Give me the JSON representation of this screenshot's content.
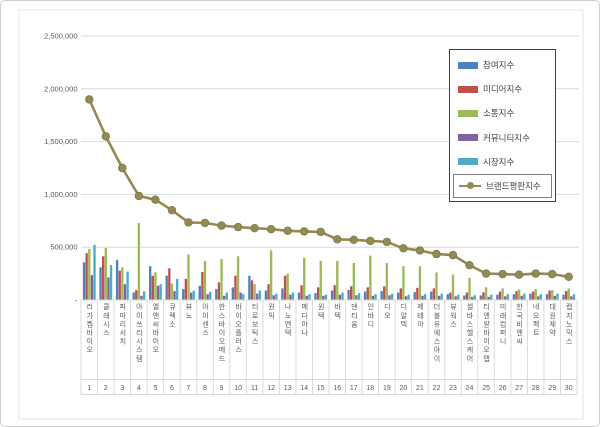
{
  "y_axis": {
    "ticks": [
      {
        "value": 2500000,
        "label": "2,500,000"
      },
      {
        "value": 2000000,
        "label": "2,000,000"
      },
      {
        "value": 1500000,
        "label": "1,500,000"
      },
      {
        "value": 1000000,
        "label": "1,000,000"
      },
      {
        "value": 500000,
        "label": "500,000"
      },
      {
        "value": 0,
        "label": "-"
      }
    ]
  },
  "legend": {
    "items": [
      {
        "label": "참여지수",
        "type": "bar",
        "color": "#4F81BD",
        "boxed": false
      },
      {
        "label": "미디어지수",
        "type": "bar",
        "color": "#C0504D",
        "boxed": false
      },
      {
        "label": "소통지수",
        "type": "bar",
        "color": "#9BBB59",
        "boxed": false
      },
      {
        "label": "커뮤니티지수",
        "type": "bar",
        "color": "#8064A2",
        "boxed": false
      },
      {
        "label": "시장지수",
        "type": "bar",
        "color": "#4BACC6",
        "boxed": false
      },
      {
        "label": "브랜드평판지수",
        "type": "line",
        "color": "#948A54",
        "boxed": true
      }
    ]
  },
  "chart_data": {
    "type": "bar",
    "title": "",
    "xlabel": "",
    "ylabel": "",
    "ylim": [
      0,
      2500000
    ],
    "grid": true,
    "legend_position": "top-right",
    "categories": [
      "리가켐바이오",
      "클래시스",
      "파마리서치",
      "아이쓰리시스템",
      "엘앤씨바이오",
      "큐렉소",
      "뷰노",
      "아이센스",
      "한스바이오메드",
      "바이오플러스",
      "티로보틱스",
      "원익",
      "나노엔텍",
      "메디아나",
      "원텍",
      "바텍",
      "덴티움",
      "인바디",
      "디오",
      "디알텍",
      "제테마",
      "더블유에스아이",
      "뷰웍스",
      "셀바스헬스케어",
      "티앤알바이오팹",
      "미래컴퍼니",
      "한국비엔씨",
      "네오펙트",
      "대원제약",
      "랩지노믹스"
    ],
    "category_numbers": [
      "1",
      "2",
      "3",
      "4",
      "5",
      "6",
      "7",
      "8",
      "9",
      "10",
      "11",
      "12",
      "13",
      "14",
      "15",
      "16",
      "17",
      "18",
      "19",
      "20",
      "21",
      "22",
      "23",
      "24",
      "25",
      "26",
      "27",
      "28",
      "29",
      "30"
    ],
    "series": [
      {
        "name": "참여지수",
        "type": "bar",
        "color": "#4F81BD",
        "values": [
          357000,
          310000,
          380000,
          71000,
          320000,
          230000,
          103000,
          135000,
          103000,
          119000,
          230000,
          90000,
          110000,
          70000,
          65000,
          90000,
          95000,
          80000,
          85000,
          70000,
          75000,
          80000,
          55000,
          43000,
          43000,
          50000,
          55000,
          60000,
          55000,
          50000
        ]
      },
      {
        "name": "미디어지수",
        "type": "bar",
        "color": "#C0504D",
        "values": [
          443000,
          414000,
          278000,
          93000,
          230000,
          300000,
          200000,
          265000,
          167000,
          230000,
          186000,
          150000,
          230000,
          140000,
          120000,
          140000,
          130000,
          120000,
          130000,
          110000,
          115000,
          110000,
          71000,
          71000,
          73000,
          80000,
          85000,
          80000,
          90000,
          85000
        ]
      },
      {
        "name": "소통지수",
        "type": "bar",
        "color": "#9BBB59",
        "values": [
          484000,
          493000,
          310000,
          729000,
          262000,
          155000,
          430000,
          370000,
          389000,
          414000,
          150000,
          470000,
          250000,
          400000,
          370000,
          370000,
          350000,
          420000,
          350000,
          320000,
          320000,
          260000,
          240000,
          210000,
          120000,
          110000,
          100000,
          105000,
          95000,
          110000
        ]
      },
      {
        "name": "커뮤니티지수",
        "type": "bar",
        "color": "#8064A2",
        "values": [
          236000,
          214000,
          150000,
          40000,
          135000,
          85000,
          70000,
          55000,
          40000,
          71000,
          60000,
          45000,
          50000,
          40000,
          40000,
          50000,
          45000,
          40000,
          45000,
          35000,
          40000,
          40000,
          35000,
          30000,
          30000,
          35000,
          40000,
          35000,
          40000,
          35000
        ]
      },
      {
        "name": "시장지수",
        "type": "bar",
        "color": "#4BACC6",
        "values": [
          522000,
          331000,
          270000,
          81000,
          150000,
          200000,
          88000,
          78000,
          71000,
          55000,
          90000,
          60000,
          70000,
          55000,
          50000,
          70000,
          65000,
          55000,
          60000,
          50000,
          55000,
          60000,
          50000,
          45000,
          50000,
          55000,
          60000,
          55000,
          60000,
          55000
        ]
      },
      {
        "name": "브랜드평판지수",
        "type": "line",
        "color": "#948A54",
        "marker_edge": "#7E7547",
        "values": [
          1900000,
          1550000,
          1250000,
          985000,
          950000,
          850000,
          735000,
          730000,
          705000,
          690000,
          680000,
          670000,
          655000,
          650000,
          645000,
          575000,
          570000,
          560000,
          550000,
          490000,
          470000,
          435000,
          425000,
          330000,
          250000,
          245000,
          240000,
          250000,
          245000,
          220000
        ]
      }
    ]
  }
}
